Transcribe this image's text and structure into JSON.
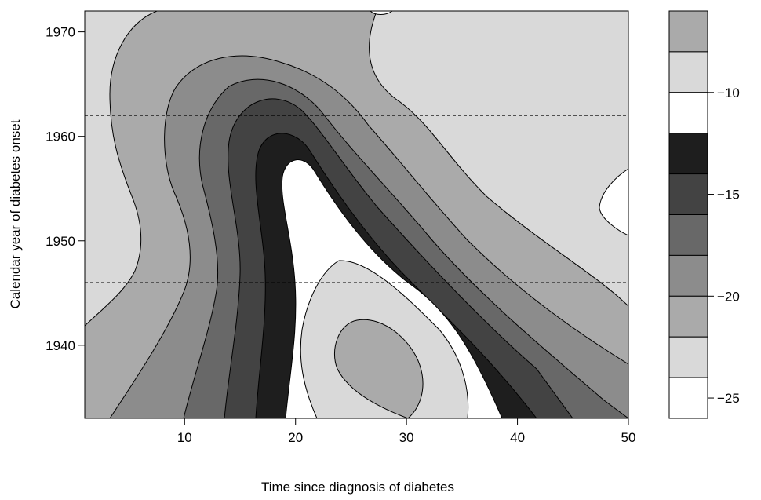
{
  "chart_data": {
    "type": "contour",
    "title": "",
    "xlabel": "Time since diagnosis of diabetes",
    "ylabel": "Calendar year of diabetes onset",
    "xlim": [
      1,
      50
    ],
    "ylim": [
      1933,
      1972
    ],
    "x_ticks": [
      10,
      20,
      30,
      40,
      50
    ],
    "y_ticks": [
      1940,
      1950,
      1960,
      1970
    ],
    "reference_lines": [
      {
        "y": 1962,
        "style": "dashed"
      },
      {
        "y": 1946,
        "style": "dashed"
      }
    ],
    "legend": {
      "position": "right",
      "ticks": [
        -10,
        -15,
        -20,
        -25
      ],
      "bands": [
        {
          "value": -7,
          "color": "#aaaaaa"
        },
        {
          "value": -9,
          "color": "#d9d9d9"
        },
        {
          "value": -11,
          "color": "#ffffff"
        },
        {
          "value": -13,
          "color": "#1e1e1e"
        },
        {
          "value": -15,
          "color": "#434343"
        },
        {
          "value": -17,
          "color": "#686868"
        },
        {
          "value": -19,
          "color": "#8c8c8c"
        },
        {
          "value": -21,
          "color": "#aaaaaa"
        },
        {
          "value": -23,
          "color": "#d9d9d9"
        },
        {
          "value": -25,
          "color": "#ffffff"
        }
      ]
    },
    "colors": {
      "background_region": "#d9d9d9",
      "level_1": "#aaaaaa",
      "level_2": "#8c8c8c",
      "level_3": "#686868",
      "level_4": "#434343",
      "level_5": "#1e1e1e",
      "inner_white": "#ffffff",
      "inner_light": "#d9d9d9",
      "inner_mid": "#aaaaaa"
    }
  }
}
